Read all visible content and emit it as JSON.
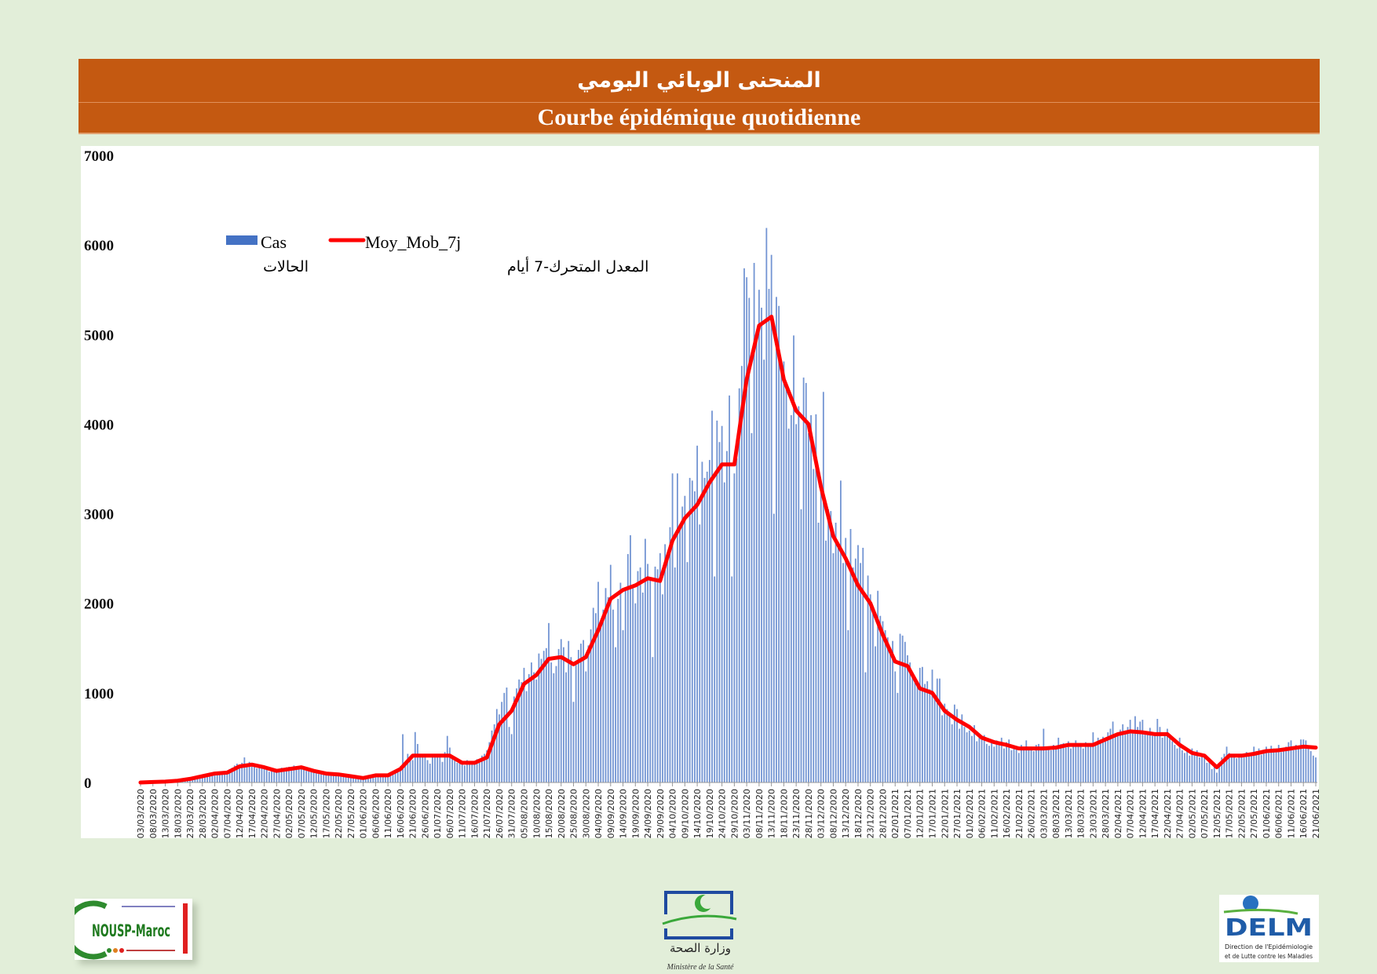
{
  "header": {
    "title_ar": "المنحنى الوبائي اليومي",
    "title_fr": "Courbe épidémique quotidienne"
  },
  "colors": {
    "header": "#c45911",
    "bars": "#4472c4",
    "line": "#ff0000",
    "background": "#e2eed9"
  },
  "logos": {
    "left": {
      "text": "NOUSP-Maroc"
    },
    "center": {
      "text_ar": "وزارة الصحة",
      "text_fr": "Ministère de la Santé"
    },
    "right": {
      "text": "DELM",
      "subtitle": "Direction de l'Epidémiologie et de Lutte contre les Maladies"
    }
  },
  "chart_data": {
    "type": "bar",
    "title": "",
    "xlabel": "",
    "ylabel": "",
    "ylim": [
      0,
      7000
    ],
    "yticks": [
      "0",
      "1000",
      "2000",
      "3000",
      "4000",
      "5000",
      "6000",
      "7000"
    ],
    "grid": false,
    "legend_placement": "top-left",
    "legend": [
      {
        "name": "Cas",
        "name_ar": "الحالات",
        "kind": "bar"
      },
      {
        "name": "Moy_Mob_7j",
        "name_ar": "المعدل المتحرك-7 أيام",
        "kind": "line"
      }
    ],
    "x_start": "03/03/2020",
    "x_end": "21/06/2021",
    "x_tick_labels": [
      "03/03/2020",
      "08/03/2020",
      "13/03/2020",
      "18/03/2020",
      "23/03/2020",
      "28/03/2020",
      "02/04/2020",
      "07/04/2020",
      "12/04/2020",
      "17/04/2020",
      "22/04/2020",
      "27/04/2020",
      "02/05/2020",
      "07/05/2020",
      "12/05/2020",
      "17/05/2020",
      "22/05/2020",
      "27/05/2020",
      "01/06/2020",
      "06/06/2020",
      "11/06/2020",
      "16/06/2020",
      "21/06/2020",
      "26/06/2020",
      "01/07/2020",
      "06/07/2020",
      "11/07/2020",
      "16/07/2020",
      "21/07/2020",
      "26/07/2020",
      "31/07/2020",
      "05/08/2020",
      "10/08/2020",
      "15/08/2020",
      "20/08/2020",
      "25/08/2020",
      "30/08/2020",
      "04/09/2020",
      "09/09/2020",
      "14/09/2020",
      "19/09/2020",
      "24/09/2020",
      "29/09/2020",
      "04/10/2020",
      "09/10/2020",
      "14/10/2020",
      "19/10/2020",
      "24/10/2020",
      "29/10/2020",
      "03/11/2020",
      "08/11/2020",
      "13/11/2020",
      "18/11/2020",
      "23/11/2020",
      "28/11/2020",
      "03/12/2020",
      "08/12/2020",
      "13/12/2020",
      "18/12/2020",
      "23/12/2020",
      "28/12/2020",
      "02/01/2021",
      "07/01/2021",
      "12/01/2021",
      "17/01/2021",
      "22/01/2021",
      "27/01/2021",
      "01/02/2021",
      "06/02/2021",
      "11/02/2021",
      "16/02/2021",
      "21/02/2021",
      "26/02/2021",
      "03/03/2021",
      "08/03/2021",
      "13/03/2021",
      "18/03/2021",
      "23/03/2021",
      "28/03/2021",
      "02/04/2021",
      "07/04/2021",
      "12/04/2021",
      "17/04/2021",
      "22/04/2021",
      "27/04/2021",
      "02/05/2021",
      "07/05/2021",
      "12/05/2021",
      "17/05/2021",
      "22/05/2021",
      "27/05/2021",
      "01/06/2021",
      "06/06/2021",
      "11/06/2021",
      "16/06/2021",
      "21/06/2021"
    ],
    "series": [
      {
        "name": "Cas",
        "type": "bar",
        "frequency": "daily",
        "values": [
          1,
          0,
          0,
          2,
          1,
          3,
          8,
          5,
          12,
          10,
          8,
          17,
          15,
          20,
          23,
          28,
          25,
          36,
          42,
          52,
          44,
          56,
          65,
          80,
          73,
          85,
          72,
          95,
          110,
          104,
          90,
          115,
          120,
          105,
          98,
          120,
          150,
          165,
          190,
          210,
          175,
          220,
          280,
          190,
          230,
          210,
          180,
          160,
          190,
          170,
          150,
          145,
          120,
          135,
          140,
          120,
          150,
          165,
          140,
          170,
          175,
          160,
          190,
          165,
          180,
          160,
          150,
          130,
          140,
          120,
          110,
          115,
          95,
          100,
          90,
          95,
          85,
          110,
          80,
          90,
          75,
          85,
          65,
          70,
          60,
          55,
          65,
          40,
          50,
          45,
          55,
          70,
          60,
          85,
          80,
          90,
          75,
          80,
          70,
          85,
          75,
          90,
          110,
          140,
          120,
          180,
          539,
          220,
          320,
          280,
          250,
          563,
          430,
          280,
          290,
          320,
          250,
          210,
          300,
          280,
          280,
          310,
          230,
          340,
          520,
          390,
          280,
          250,
          220,
          230,
          200,
          190,
          250,
          210,
          230,
          240,
          260,
          220,
          300,
          320,
          360,
          450,
          580,
          650,
          820,
          760,
          900,
          1000,
          1060,
          620,
          540,
          960,
          1050,
          1150,
          1120,
          1280,
          1020,
          1210,
          1340,
          1230,
          1150,
          1440,
          1380,
          1470,
          1500,
          1780,
          1340,
          1220,
          1300,
          1490,
          1600,
          1510,
          1230,
          1580,
          1400,
          900,
          1330,
          1480,
          1550,
          1590,
          1240,
          1530,
          1710,
          1950,
          1890,
          2240,
          1780,
          1930,
          2170,
          2070,
          2430,
          1930,
          1510,
          2050,
          2230,
          1700,
          2150,
          2550,
          2760,
          2200,
          2000,
          2360,
          2400,
          2120,
          2720,
          2440,
          2280,
          1400,
          2410,
          2380,
          2560,
          2100,
          2660,
          2500,
          2850,
          3450,
          2400,
          3450,
          2870,
          3080,
          3200,
          2460,
          3400,
          3370,
          3250,
          3760,
          2880,
          3580,
          3400,
          3470,
          3600,
          4150,
          2300,
          4040,
          3800,
          3980,
          3350,
          3700,
          4320,
          2300,
          3450,
          3620,
          4400,
          4650,
          5740,
          5640,
          5410,
          3900,
          5800,
          5000,
          5500,
          5300,
          4720,
          6190,
          5510,
          5890,
          3000,
          5420,
          5320,
          4620,
          4700,
          4400,
          3950,
          4100,
          4990,
          4000,
          4200,
          3050,
          4520,
          4460,
          3900,
          4100,
          3500,
          4110,
          2900,
          3350,
          4360,
          2700,
          3050,
          3030,
          2560,
          2900,
          2620,
          3370,
          2450,
          2730,
          1700,
          2830,
          2400,
          2500,
          2650,
          2450,
          2620,
          1230,
          2310,
          2100,
          1920,
          1520,
          2140,
          1860,
          1800,
          1700,
          1620,
          1430,
          1580,
          1240,
          1000,
          1660,
          1640,
          1570,
          1420,
          1340,
          1200,
          1160,
          1090,
          1280,
          1290,
          1100,
          1130,
          1040,
          1260,
          950,
          1160,
          1160,
          750,
          880,
          820,
          780,
          650,
          870,
          820,
          600,
          760,
          620,
          560,
          580,
          520,
          640,
          460,
          500,
          480,
          530,
          430,
          410,
          460,
          400,
          470,
          420,
          500,
          380,
          450,
          480,
          360,
          410,
          380,
          330,
          420,
          390,
          470,
          360,
          400,
          350,
          420,
          430,
          370,
          600,
          400,
          380,
          360,
          420,
          370,
          500,
          430,
          440,
          390,
          460,
          380,
          430,
          470,
          400,
          440,
          380,
          450,
          430,
          400,
          560,
          450,
          500,
          480,
          510,
          480,
          560,
          600,
          680,
          520,
          560,
          590,
          650,
          580,
          620,
          700,
          560,
          740,
          620,
          680,
          700,
          540,
          560,
          610,
          520,
          560,
          710,
          620,
          500,
          540,
          600,
          500,
          460,
          420,
          380,
          500,
          360,
          330,
          350,
          300,
          380,
          310,
          360,
          280,
          300,
          290,
          220,
          260,
          150,
          170,
          110,
          220,
          280,
          320,
          400,
          330,
          280,
          310,
          270,
          320,
          320,
          280,
          340,
          310,
          330,
          400,
          350,
          380,
          310,
          360,
          400,
          330,
          410,
          380,
          360,
          420,
          340,
          390,
          400,
          450,
          470,
          360,
          420,
          410,
          480,
          480,
          470,
          400,
          350,
          300,
          280
        ]
      },
      {
        "name": "Moy_Mob_7j",
        "type": "line",
        "sampled_at": "x_tick_labels",
        "values": [
          0,
          5,
          10,
          20,
          40,
          70,
          100,
          110,
          180,
          200,
          170,
          130,
          150,
          170,
          130,
          100,
          90,
          70,
          50,
          80,
          80,
          150,
          300,
          300,
          300,
          300,
          220,
          220,
          280,
          650,
          800,
          1100,
          1200,
          1380,
          1400,
          1320,
          1400,
          1700,
          2050,
          2150,
          2200,
          2280,
          2250,
          2700,
          2950,
          3100,
          3350,
          3550,
          3550,
          4500,
          5100,
          5200,
          4500,
          4150,
          4000,
          3300,
          2750,
          2500,
          2200,
          2000,
          1650,
          1350,
          1300,
          1050,
          1000,
          800,
          700,
          620,
          500,
          450,
          420,
          380,
          380,
          380,
          390,
          420,
          420,
          420,
          480,
          540,
          570,
          560,
          540,
          540,
          420,
          330,
          300,
          170,
          300,
          300,
          320,
          350,
          360,
          380,
          400,
          390
        ]
      }
    ]
  }
}
